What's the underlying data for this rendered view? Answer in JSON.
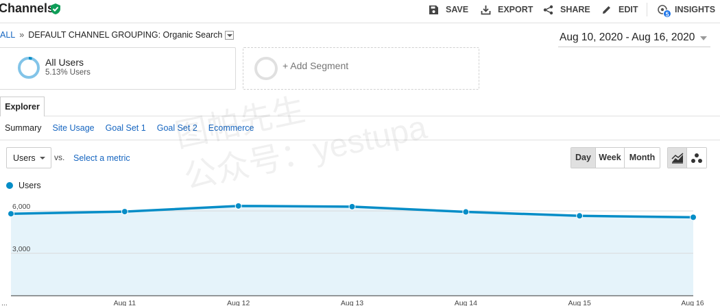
{
  "header": {
    "title": "Channels",
    "toolbar": {
      "save": "SAVE",
      "export": "EXPORT",
      "share": "SHARE",
      "edit": "EDIT",
      "insights": "INSIGHTS",
      "insights_badge": "5"
    }
  },
  "breadcrumb": {
    "all": "ALL",
    "separator": "»",
    "current": "DEFAULT CHANNEL GROUPING: Organic Search"
  },
  "date_range": "Aug 10, 2020 - Aug 16, 2020",
  "segments": {
    "active": {
      "name": "All Users",
      "subtitle": "5.13% Users",
      "share": 0.0513
    },
    "add_label": "+ Add Segment"
  },
  "explorer": {
    "tab": "Explorer",
    "subtabs": [
      "Summary",
      "Site Usage",
      "Goal Set 1",
      "Goal Set 2",
      "Ecommerce"
    ]
  },
  "controls": {
    "metric": "Users",
    "vs": "vs.",
    "select_metric": "Select a metric",
    "periods": [
      "Day",
      "Week",
      "Month"
    ],
    "active_period": "Day"
  },
  "watermark": {
    "line1": "图帕先生",
    "line2": "公众号：yestupa"
  },
  "colors": {
    "series": "#058dc7",
    "fill": "#e5f3fa",
    "link": "#1565c0",
    "verified": "#0f9d58"
  },
  "chart_data": {
    "type": "area",
    "x": [
      "...",
      "Aug 11",
      "Aug 12",
      "Aug 13",
      "Aug 14",
      "Aug 15",
      "Aug 16"
    ],
    "series": [
      {
        "name": "Users",
        "values": [
          5800,
          5950,
          6350,
          6300,
          5930,
          5650,
          5550
        ]
      }
    ],
    "y_ticks": [
      "6,000",
      "3,000"
    ],
    "ylim": [
      0,
      6972
    ],
    "legend": "top-left",
    "grid": true
  }
}
